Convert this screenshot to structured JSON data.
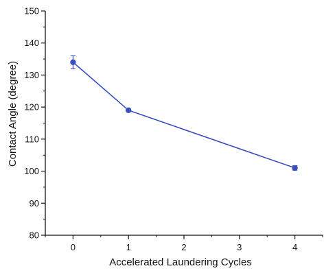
{
  "chart_data": {
    "type": "line",
    "xlabel": "Accelerated Laundering Cycles",
    "ylabel": "Contact Angle (degree)",
    "x_ticks": [
      0,
      1,
      2,
      3,
      4
    ],
    "y_ticks": [
      80,
      90,
      100,
      110,
      120,
      130,
      140,
      150
    ],
    "xlim": [
      -0.5,
      4.5
    ],
    "ylim": [
      80,
      150
    ],
    "grid": false,
    "series": [
      {
        "x": [
          0,
          1,
          4
        ],
        "y": [
          134,
          119,
          101
        ],
        "error": [
          2,
          0.5,
          0.7
        ],
        "color": "#3a4fbf"
      }
    ]
  }
}
